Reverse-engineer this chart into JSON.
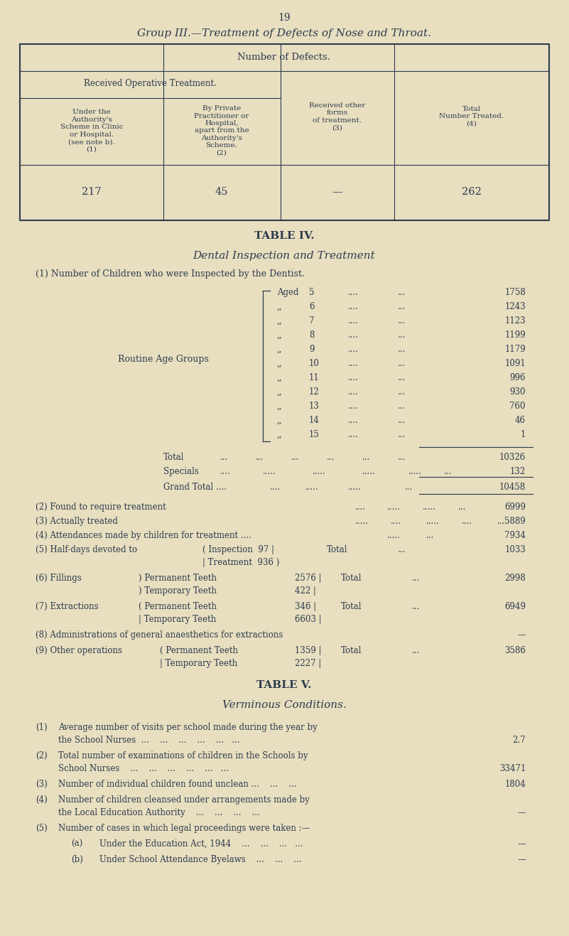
{
  "bg_color": "#e8dfc0",
  "text_color": "#2d3b4e",
  "page_number": "19",
  "group3_title": "Group III.—Treatment of Defects of Nose and Throat.",
  "t3_header_main": "Number of Defects.",
  "t3_header_sub": "Received Operative Treatment.",
  "t3_col1": "Under the\nAuthority's\nScheme in Clinic\nor Hospital.\n(see note b).\n(1)",
  "t3_col2": "By Private\nPractitioner or\nHospital,\napart from the\nAuthority's\nScheme.\n(2)",
  "t3_col3": "Received other\nforms\nof treatment.\n(3)",
  "t3_col4": "Total\nNumber Treated.\n(4)",
  "t3_val1": "217",
  "t3_val2": "45",
  "t3_val3": "—",
  "t3_val4": "262",
  "t4_title": "TABLE IV.",
  "t4_subtitle": "Dental Inspection and Treatment",
  "t4_intro": "(1) Number of Children who were Inspected by the Dentist.",
  "routine_label": "Routine Age Groups",
  "ages": [
    "5",
    "6",
    "7",
    "8",
    "9",
    "10",
    "11",
    "12",
    "13",
    "14",
    "15"
  ],
  "age_vals": [
    "1758",
    "1243",
    "1123",
    "1199",
    "1179",
    "1091",
    "996",
    "930",
    "760",
    "46",
    "1"
  ],
  "total_val": "10326",
  "specials_val": "132",
  "grand_total_val": "10458",
  "t5_title": "TABLE V.",
  "t5_subtitle": "Verminous Conditions."
}
